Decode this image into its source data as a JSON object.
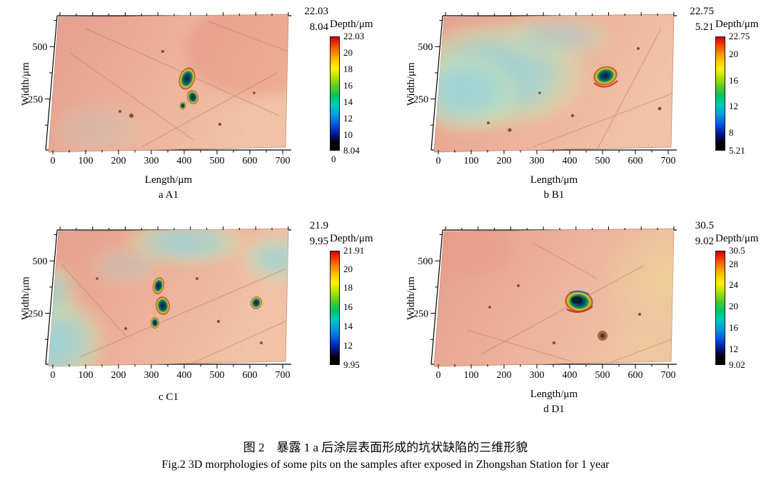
{
  "figure": {
    "caption_cn": "图 2　暴露 1 a 后涂层表面形成的坑状缺陷的三维形貌",
    "caption_en": "Fig.2 3D morphologies of some pits on the samples after exposed in Zhongshan Station for 1 year"
  },
  "axes": {
    "x_label": "Length/μm",
    "y_label": "Width/μm",
    "x_ticks": [
      "0",
      "100",
      "200",
      "300",
      "400",
      "500",
      "600",
      "700"
    ],
    "y_ticks": [
      "500",
      "250"
    ]
  },
  "colorbar": {
    "title": "Depth/μm"
  },
  "panels": [
    {
      "id": "a",
      "label": "a A1",
      "max": "22.03",
      "min": "8.04",
      "x_label": "Length/μm",
      "cb_ticks": [
        "22.03",
        "20",
        "18",
        "16",
        "14",
        "12",
        "10",
        "8.04"
      ],
      "cb_zero": "0"
    },
    {
      "id": "b",
      "label": "b B1",
      "max": "22.75",
      "min": "5.21",
      "x_label": "Length/μm",
      "cb_ticks": [
        "22.75",
        "20",
        "16",
        "12",
        "8",
        "5.21"
      ]
    },
    {
      "id": "c",
      "label": "c C1",
      "max": "21.9",
      "min": "9.95",
      "x_label": "",
      "cb_ticks": [
        "21.91",
        "20",
        "18",
        "16",
        "14",
        "12",
        "9.95"
      ]
    },
    {
      "id": "d",
      "label": "d D1",
      "max": "30.5",
      "min": "9.02",
      "x_label": "Length/μm",
      "cb_ticks": [
        "30.5",
        "28",
        "24",
        "20",
        "16",
        "12",
        "9.02"
      ]
    }
  ],
  "chart_data": [
    {
      "type": "heatmap",
      "panel": "a A1",
      "xlabel": "Length/μm",
      "ylabel": "Width/μm",
      "zlabel": "Depth/μm",
      "x_range": [
        0,
        700
      ],
      "y_ticks": [
        250,
        500
      ],
      "depth_min": 8.04,
      "depth_max": 22.03,
      "colorbar_ticks": [
        22.03,
        20,
        18,
        16,
        14,
        12,
        10,
        8.04
      ]
    },
    {
      "type": "heatmap",
      "panel": "b B1",
      "xlabel": "Length/μm",
      "ylabel": "Width/μm",
      "zlabel": "Depth/μm",
      "x_range": [
        0,
        700
      ],
      "y_ticks": [
        250,
        500
      ],
      "depth_min": 5.21,
      "depth_max": 22.75,
      "colorbar_ticks": [
        22.75,
        20,
        16,
        12,
        8,
        5.21
      ]
    },
    {
      "type": "heatmap",
      "panel": "c C1",
      "xlabel": "Length/μm",
      "ylabel": "Width/μm",
      "zlabel": "Depth/μm",
      "x_range": [
        0,
        700
      ],
      "y_ticks": [
        250,
        500
      ],
      "depth_min": 9.95,
      "depth_max": 21.91,
      "colorbar_ticks": [
        21.91,
        20,
        18,
        16,
        14,
        12,
        9.95
      ]
    },
    {
      "type": "heatmap",
      "panel": "d D1",
      "xlabel": "Length/μm",
      "ylabel": "Width/μm",
      "zlabel": "Depth/μm",
      "x_range": [
        0,
        700
      ],
      "y_ticks": [
        250,
        500
      ],
      "depth_min": 9.02,
      "depth_max": 30.5,
      "colorbar_ticks": [
        30.5,
        28,
        24,
        20,
        16,
        12,
        9.02
      ]
    }
  ]
}
